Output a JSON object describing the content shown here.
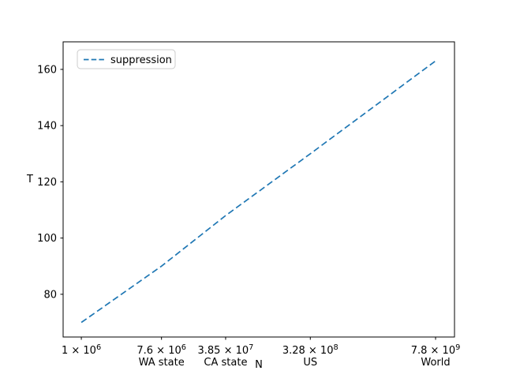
{
  "figure": {
    "background": "#ffffff"
  },
  "chart_data": {
    "type": "line",
    "title": "",
    "xlabel": "N",
    "ylabel": "T",
    "x_scale": "log",
    "grid": false,
    "legend": {
      "position": "upper left",
      "entries": [
        {
          "label": "suppression",
          "color": "#1f77b4",
          "linestyle": "dashed"
        }
      ]
    },
    "x_ticks": [
      {
        "value": 1000000,
        "label": "1 × 10⁶",
        "mantissa": "1",
        "exponent": "6",
        "sublabel": ""
      },
      {
        "value": 7600000,
        "label": "7.6 × 10⁶",
        "mantissa": "7.6",
        "exponent": "6",
        "sublabel": "WA state"
      },
      {
        "value": 38500000,
        "label": "3.85 × 10⁷",
        "mantissa": "3.85",
        "exponent": "7",
        "sublabel": "CA state"
      },
      {
        "value": 328000000,
        "label": "3.28 × 10⁸",
        "mantissa": "3.28",
        "exponent": "8",
        "sublabel": "US"
      },
      {
        "value": 7800000000,
        "label": "7.8 × 10⁹",
        "mantissa": "7.8",
        "exponent": "9",
        "sublabel": "World"
      }
    ],
    "y_ticks": [
      80,
      100,
      120,
      140,
      160
    ],
    "xlim_log10": [
      5.8,
      10.1
    ],
    "ylim": [
      64.8,
      169.8
    ],
    "series": [
      {
        "name": "suppression",
        "color": "#1f77b4",
        "linestyle": "dashed",
        "x": [
          1000000,
          7600000,
          38500000,
          328000000,
          7800000000
        ],
        "y": [
          70,
          90,
          108,
          130,
          163
        ]
      }
    ]
  }
}
